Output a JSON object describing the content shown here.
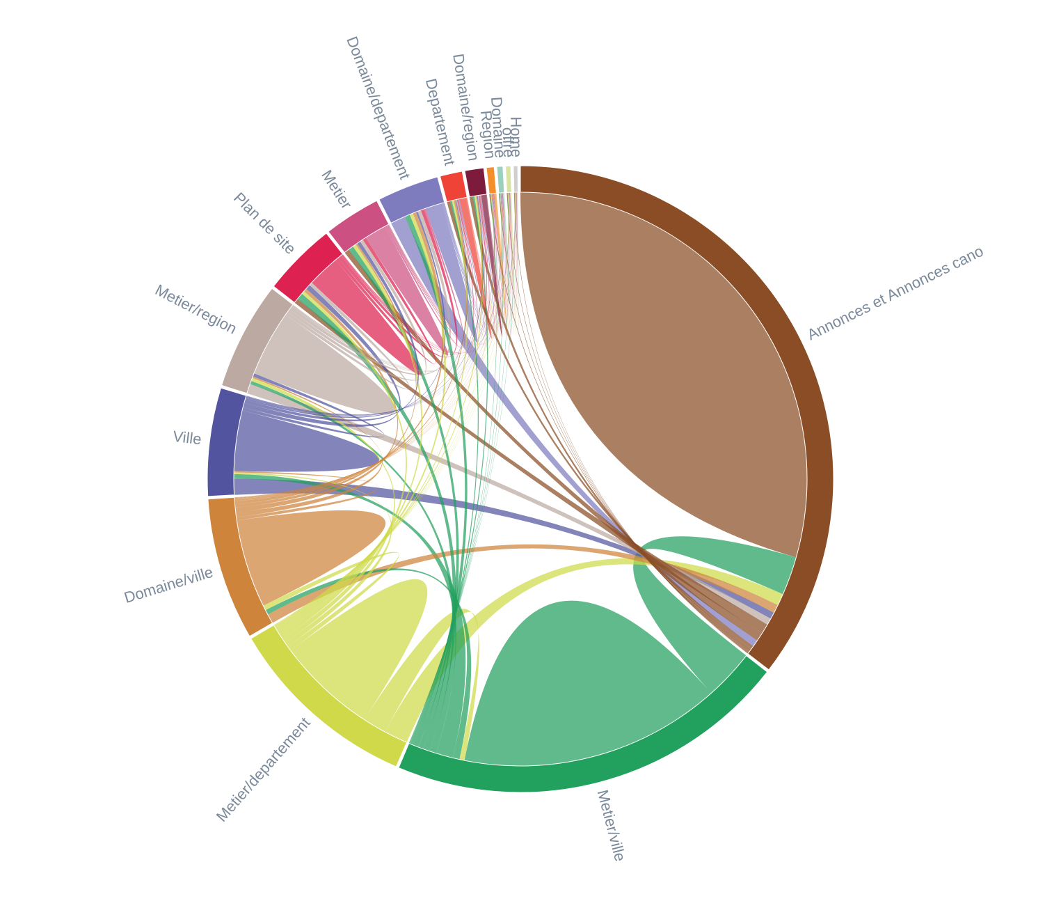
{
  "chart_data": {
    "type": "chord",
    "title": "",
    "groups": [
      {
        "name": "Annonces et Annonces cano",
        "color": "#8b4d26"
      },
      {
        "name": "Metier/ville",
        "color": "#22a05e"
      },
      {
        "name": "Metier/departement",
        "color": "#cfd94a"
      },
      {
        "name": "Domaine/ville",
        "color": "#cf843c"
      },
      {
        "name": "Ville",
        "color": "#5254a0"
      },
      {
        "name": "Metier/region",
        "color": "#bcaaa2"
      },
      {
        "name": "Plan de site",
        "color": "#dd2150"
      },
      {
        "name": "Metier",
        "color": "#cc5081"
      },
      {
        "name": "Domaine/departement",
        "color": "#7e7cbe"
      },
      {
        "name": "Departement",
        "color": "#ee4336"
      },
      {
        "name": "Domaine/region",
        "color": "#7d1b3d"
      },
      {
        "name": "Region",
        "color": "#f58f2b"
      },
      {
        "name": "Domaine",
        "color": "#9ad0be"
      },
      {
        "name": "offre",
        "color": "#d9e3a2"
      },
      {
        "name": "Home",
        "color": "#cfcfcf"
      }
    ],
    "sizes": [
      40.0,
      23.5,
      11.3,
      8.3,
      6.3,
      6.3,
      4.3,
      3.3,
      3.6,
      1.3,
      1.1,
      0.45,
      0.35,
      0.3,
      0.25
    ],
    "matrix": [
      [
        31.0,
        2.3,
        0.7,
        0.5,
        0.4,
        0.4,
        0.6,
        0.5,
        0.4,
        0.2,
        0.2,
        0.05,
        0.04,
        0.03,
        0.03
      ],
      [
        3.0,
        15.5,
        0.3,
        0.4,
        1.0,
        0.4,
        0.4,
        0.3,
        0.3,
        0.1,
        0.1,
        0.03,
        0.03,
        0.02,
        0.02
      ],
      [
        1.5,
        1.5,
        6.3,
        0.3,
        0.3,
        0.3,
        0.3,
        0.2,
        0.2,
        0.1,
        0.1,
        0.03,
        0.02,
        0.02,
        0.02
      ],
      [
        0.6,
        0.3,
        0.3,
        5.5,
        0.2,
        0.3,
        0.3,
        0.2,
        0.2,
        0.1,
        0.05,
        0.02,
        0.02,
        0.02,
        0.02
      ],
      [
        1.0,
        0.3,
        0.1,
        0.1,
        3.8,
        0.2,
        0.3,
        0.2,
        0.1,
        0.05,
        0.05,
        0.02,
        0.02,
        0.01,
        0.01
      ],
      [
        0.6,
        0.2,
        0.2,
        0.1,
        0.2,
        4.1,
        0.2,
        0.2,
        0.2,
        0.05,
        0.05,
        0.02,
        0.02,
        0.01,
        0.01
      ],
      [
        0.3,
        0.4,
        0.2,
        0.2,
        0.3,
        0.2,
        2.0,
        0.2,
        0.2,
        0.05,
        0.05,
        0.02,
        0.02,
        0.01,
        0.01
      ],
      [
        0.3,
        0.3,
        0.2,
        0.1,
        0.2,
        0.2,
        0.2,
        1.3,
        0.1,
        0.05,
        0.05,
        0.02,
        0.02,
        0.01,
        0.01
      ],
      [
        0.9,
        0.3,
        0.2,
        0.2,
        0.1,
        0.2,
        0.2,
        0.1,
        1.0,
        0.05,
        0.05,
        0.02,
        0.02,
        0.01,
        0.01
      ],
      [
        0.2,
        0.1,
        0.1,
        0.1,
        0.05,
        0.05,
        0.05,
        0.05,
        0.05,
        0.4,
        0.02,
        0.01,
        0.01,
        0.01,
        0.01
      ],
      [
        0.2,
        0.1,
        0.1,
        0.05,
        0.05,
        0.05,
        0.05,
        0.05,
        0.05,
        0.02,
        0.3,
        0.01,
        0.01,
        0.01,
        0.01
      ],
      [
        0.05,
        0.03,
        0.03,
        0.02,
        0.02,
        0.02,
        0.02,
        0.02,
        0.02,
        0.01,
        0.01,
        0.1,
        0.01,
        0.01,
        0.01
      ],
      [
        0.04,
        0.03,
        0.02,
        0.02,
        0.02,
        0.02,
        0.02,
        0.02,
        0.02,
        0.01,
        0.01,
        0.01,
        0.06,
        0.01,
        0.01
      ],
      [
        0.03,
        0.02,
        0.02,
        0.02,
        0.01,
        0.01,
        0.01,
        0.01,
        0.01,
        0.01,
        0.01,
        0.01,
        0.01,
        0.05,
        0.01
      ],
      [
        0.03,
        0.02,
        0.02,
        0.02,
        0.01,
        0.01,
        0.01,
        0.01,
        0.01,
        0.01,
        0.01,
        0.01,
        0.01,
        0.01,
        0.04
      ]
    ],
    "legend": "none"
  }
}
